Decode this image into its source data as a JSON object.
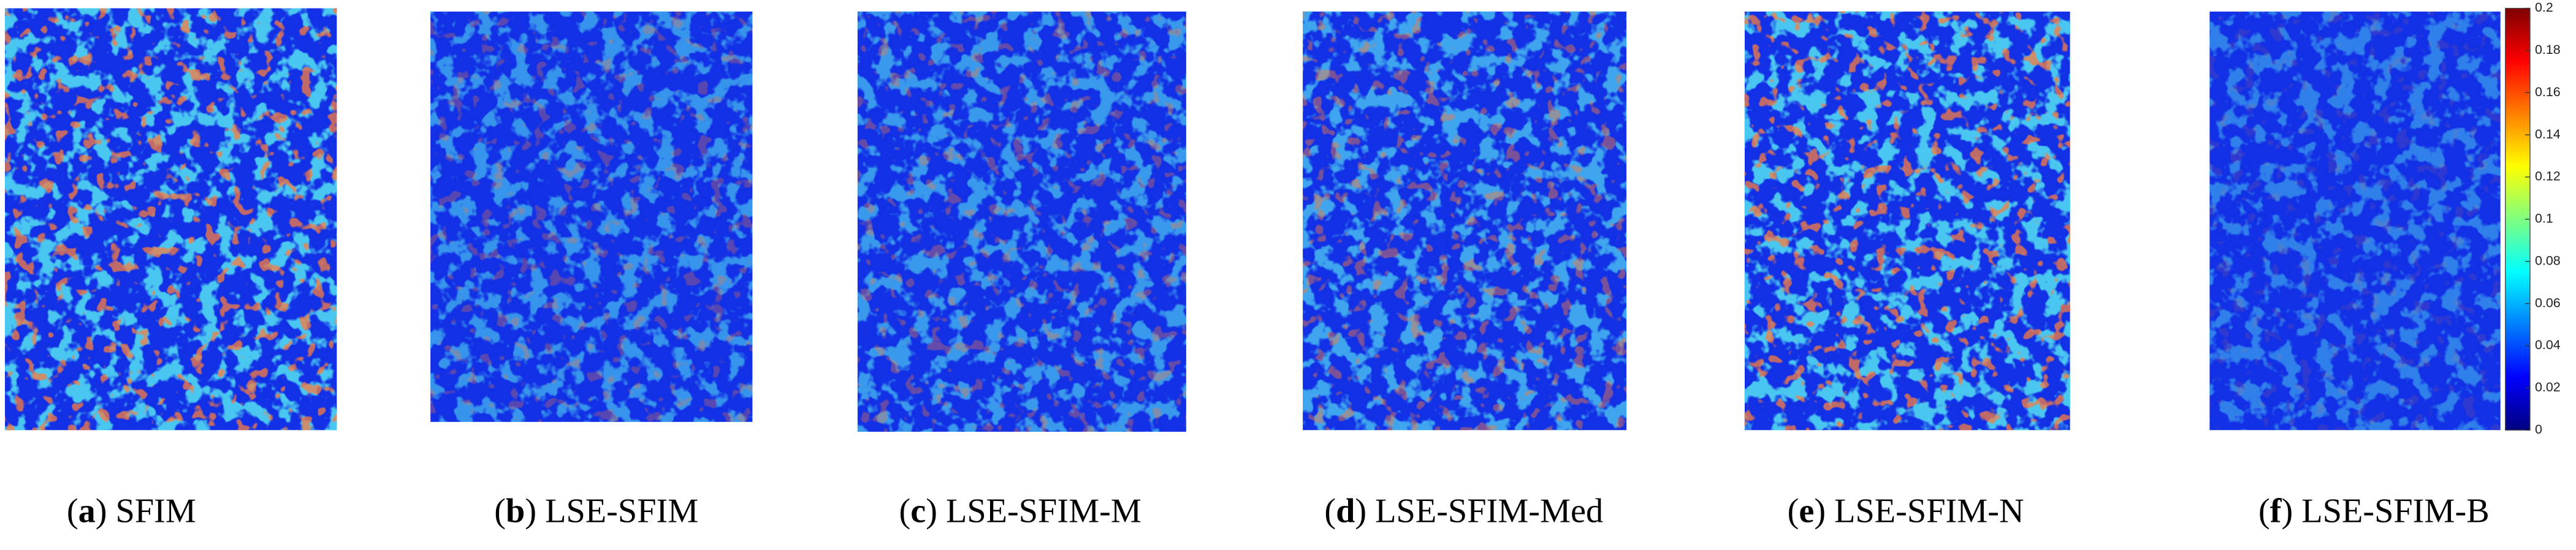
{
  "panels": [
    {
      "caption": [
        "(",
        "a",
        ") SFIM"
      ]
    },
    {
      "caption": [
        "(",
        "b",
        ") LSE-SFIM"
      ]
    },
    {
      "caption": [
        "(",
        "c",
        ") LSE-SFIM-M"
      ]
    },
    {
      "caption": [
        "(",
        "d",
        ") LSE-SFIM-Med"
      ]
    },
    {
      "caption": [
        "(",
        "e",
        ") LSE-SFIM-N"
      ]
    },
    {
      "caption": [
        "(",
        "f",
        ") LSE-SFIM-B"
      ]
    }
  ],
  "colorbar": {
    "ylim": [
      0,
      0.2
    ],
    "ticks": [
      0,
      0.02,
      0.04,
      0.06,
      0.08,
      0.1,
      0.12,
      0.14,
      0.16,
      0.18,
      0.2
    ]
  }
}
